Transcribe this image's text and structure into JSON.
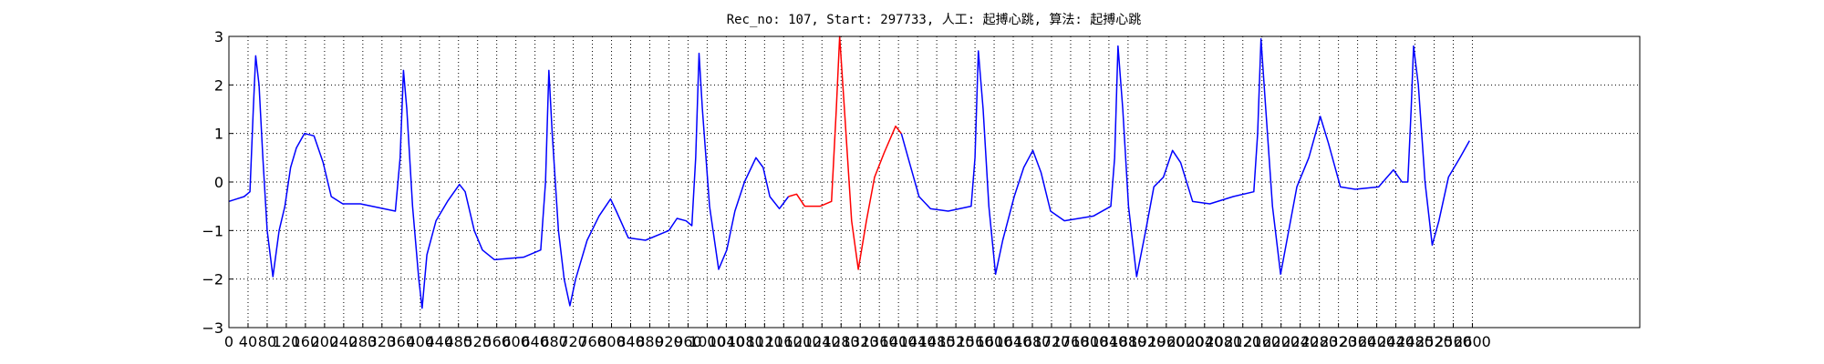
{
  "chart_data": {
    "type": "line",
    "title": "Rec_no: 107, Start: 297733, 人工: 起搏心跳, 算法: 起搏心跳",
    "xlim": [
      0,
      2950
    ],
    "ylim": [
      -3,
      3
    ],
    "xticks": [
      0,
      40,
      80,
      120,
      160,
      200,
      240,
      280,
      320,
      360,
      400,
      440,
      480,
      520,
      560,
      600,
      640,
      680,
      720,
      760,
      800,
      840,
      880,
      920,
      960,
      1000,
      1040,
      1080,
      1120,
      1160,
      1200,
      1240,
      1280,
      1320,
      1360,
      1400,
      1440,
      1480,
      1520,
      1560,
      1600,
      1640,
      1680,
      1720,
      1760,
      1800,
      1840,
      1880,
      1920,
      1960,
      2000,
      2040,
      2080,
      2120,
      2160,
      2200,
      2240,
      2280,
      2320,
      2360,
      2400,
      2440,
      2480,
      2520,
      2560,
      2600
    ],
    "yticks": [
      {
        "value": -3,
        "label": "−3"
      },
      {
        "value": -2,
        "label": "−2"
      },
      {
        "value": -1,
        "label": "−1"
      },
      0,
      1,
      2,
      3
    ],
    "grid": true,
    "series": [
      {
        "color": "#0000ff",
        "x": [
          0,
          32,
          44,
          51,
          56,
          63,
          71,
          80,
          92,
          105,
          117,
          129,
          141,
          158,
          178,
          197,
          214,
          238,
          275,
          324,
          348,
          358,
          365,
          372,
          384,
          397,
          404,
          414,
          433,
          457,
          482,
          494,
          513,
          530,
          555,
          616,
          652,
          662,
          669,
          676,
          689,
          701,
          713,
          725,
          749,
          774,
          798,
          810,
          835,
          871,
          920,
          937,
          956,
          968,
          976,
          983,
          990,
          1005,
          1024,
          1041,
          1058,
          1078,
          1102,
          1117,
          1131,
          1151,
          1170
        ],
        "values": [
          -0.4,
          -0.3,
          -0.2,
          1.5,
          2.6,
          2.0,
          0.5,
          -1.0,
          -1.95,
          -1.0,
          -0.5,
          0.3,
          0.7,
          1.0,
          0.95,
          0.4,
          -0.3,
          -0.45,
          -0.45,
          -0.55,
          -0.6,
          0.5,
          2.3,
          1.5,
          -0.5,
          -2.0,
          -2.6,
          -1.5,
          -0.8,
          -0.4,
          -0.05,
          -0.2,
          -1.0,
          -1.4,
          -1.6,
          -1.55,
          -1.4,
          0.0,
          2.3,
          1.0,
          -1.0,
          -2.0,
          -2.55,
          -2.0,
          -1.2,
          -0.7,
          -0.35,
          -0.6,
          -1.15,
          -1.2,
          -1.0,
          -0.75,
          -0.8,
          -0.9,
          0.5,
          2.65,
          1.5,
          -0.5,
          -1.8,
          -1.4,
          -0.6,
          0.0,
          0.5,
          0.3,
          -0.3,
          -0.55,
          -0.3
        ]
      },
      {
        "color": "#ff0000",
        "x": [
          1170,
          1187,
          1204,
          1236,
          1260,
          1270,
          1277,
          1287,
          1302,
          1316,
          1333,
          1350,
          1370,
          1394,
          1406
        ],
        "values": [
          -0.3,
          -0.25,
          -0.5,
          -0.5,
          -0.4,
          1.5,
          3.0,
          1.5,
          -0.8,
          -1.8,
          -0.8,
          0.1,
          0.6,
          1.15,
          1.0
        ]
      },
      {
        "color": "#0000ff",
        "x": [
          1406,
          1423,
          1443,
          1467,
          1504,
          1552,
          1560,
          1567,
          1577,
          1589,
          1603,
          1618,
          1642,
          1662,
          1681,
          1698,
          1718,
          1747,
          1808,
          1844,
          1852,
          1859,
          1869,
          1881,
          1898,
          1917,
          1934,
          1954,
          1973,
          1990,
          2015,
          2051,
          2100,
          2143,
          2151,
          2158,
          2168,
          2182,
          2199,
          2216,
          2233,
          2258,
          2282,
          2299,
          2324,
          2355,
          2404,
          2435,
          2453,
          2465,
          2472,
          2477,
          2487,
          2501,
          2516,
          2530,
          2550,
          2574,
          2594
        ],
        "values": [
          1.0,
          0.4,
          -0.3,
          -0.55,
          -0.6,
          -0.5,
          0.5,
          2.7,
          1.5,
          -0.5,
          -1.9,
          -1.2,
          -0.3,
          0.3,
          0.65,
          0.2,
          -0.6,
          -0.8,
          -0.7,
          -0.5,
          0.5,
          2.8,
          1.5,
          -0.5,
          -1.95,
          -1.0,
          -0.1,
          0.1,
          0.65,
          0.4,
          -0.4,
          -0.45,
          -0.3,
          -0.2,
          1.0,
          2.95,
          1.5,
          -0.5,
          -1.9,
          -1.0,
          -0.1,
          0.5,
          1.35,
          0.8,
          -0.1,
          -0.15,
          -0.1,
          0.25,
          0.0,
          0.0,
          1.5,
          2.8,
          2.0,
          0.0,
          -1.3,
          -0.8,
          0.1,
          0.5,
          0.85
        ]
      }
    ]
  }
}
